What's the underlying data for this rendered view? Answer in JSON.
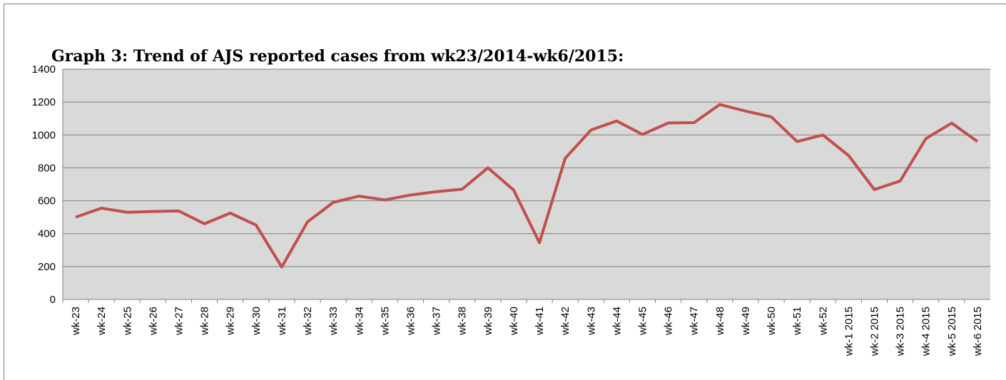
{
  "chart_data": {
    "type": "line",
    "title": "Graph 3: Trend of AJS reported cases from wk23/2014-wk6/2015:",
    "categories": [
      "wk-23",
      "wk-24",
      "wk-25",
      "wk-26",
      "wk-27",
      "wk-28",
      "wk-29",
      "wk-30",
      "wk-31",
      "wk-32",
      "wk-33",
      "wk-34",
      "wk-35",
      "wk-36",
      "wk-37",
      "wk-38",
      "wk-39",
      "wk-40",
      "wk-41",
      "wk-42",
      "wk-43",
      "wk-44",
      "wk-45",
      "wk-46",
      "wk-47",
      "wk-48",
      "wk-49",
      "wk-50",
      "wk-51",
      "wk-52",
      "wk-1 2015",
      "wk-2 2015",
      "wk-3 2015",
      "wk-4 2015",
      "wk-5 2015",
      "wk-6 2015"
    ],
    "series": [
      {
        "name": "AJS reported cases",
        "color": "#c0504d",
        "values": [
          500,
          555,
          530,
          535,
          538,
          460,
          525,
          452,
          197,
          472,
          590,
          628,
          605,
          635,
          655,
          670,
          800,
          665,
          345,
          858,
          1030,
          1085,
          1003,
          1073,
          1075,
          1185,
          1145,
          1110,
          960,
          1000,
          875,
          668,
          720,
          978,
          1072,
          960
        ]
      }
    ],
    "ylim": [
      0,
      1400
    ],
    "yticks": [
      0,
      200,
      400,
      600,
      800,
      1000,
      1200,
      1400
    ],
    "grid": true
  }
}
